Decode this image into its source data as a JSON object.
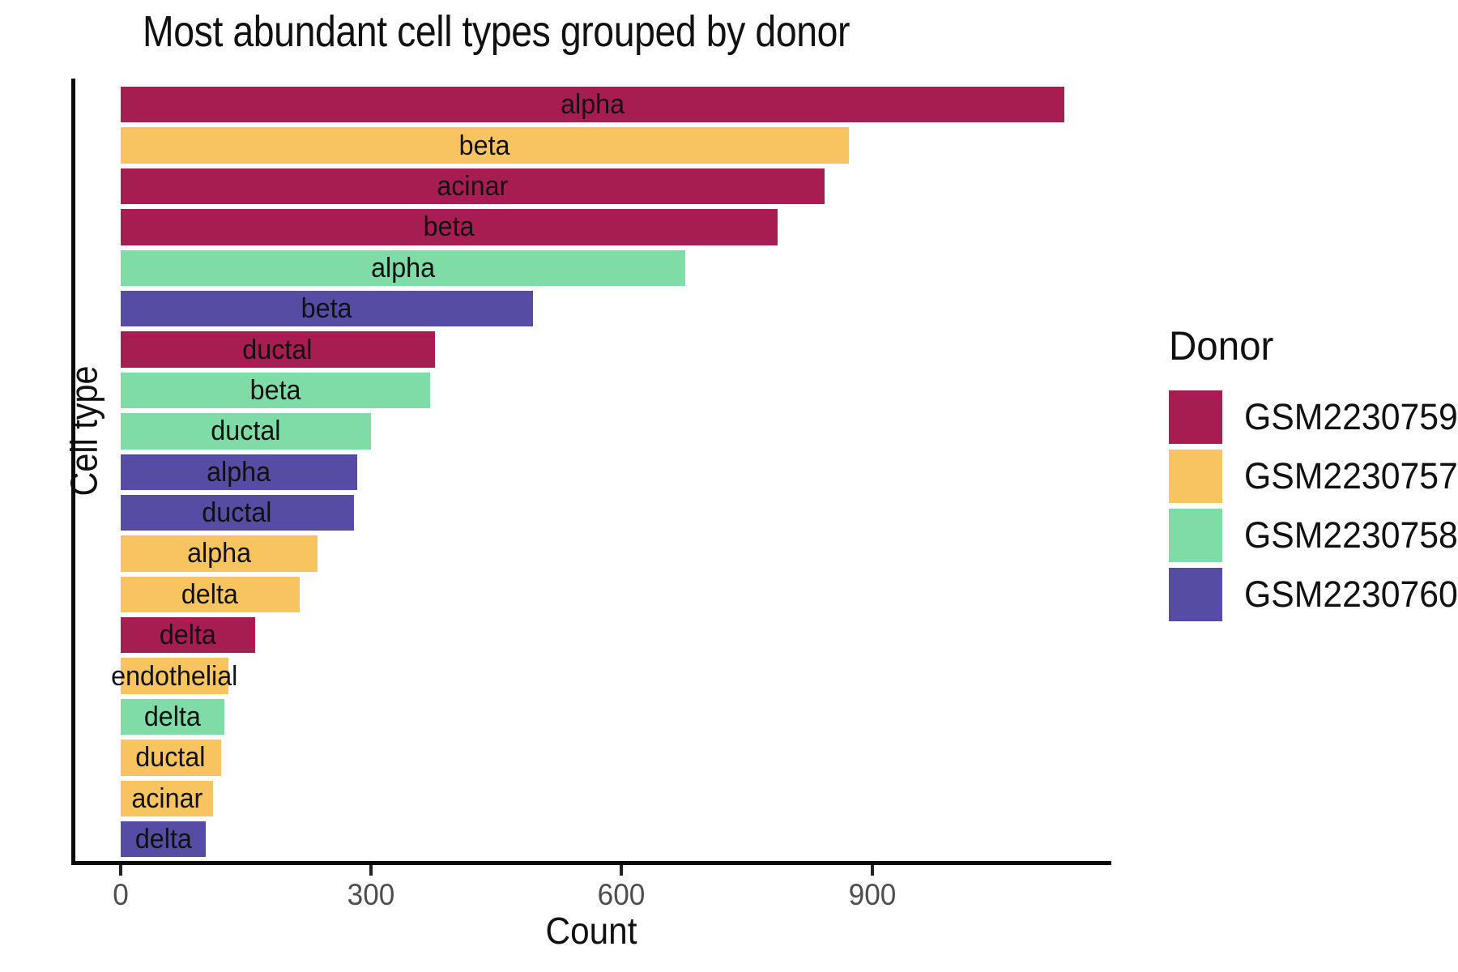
{
  "chart_data": {
    "type": "bar",
    "orientation": "horizontal",
    "title": "Most abundant cell types grouped by donor",
    "xlabel": "Count",
    "ylabel": "Cell type",
    "x_ticks": [
      0,
      300,
      600,
      900
    ],
    "xlim": [
      0,
      1186
    ],
    "grid": false,
    "legend": {
      "title": "Donor",
      "position": "right",
      "entries": [
        {
          "label": "GSM2230759",
          "color": "#A81D51"
        },
        {
          "label": "GSM2230757",
          "color": "#F7C45F"
        },
        {
          "label": "GSM2230758",
          "color": "#7FDCA7"
        },
        {
          "label": "GSM2230760",
          "color": "#574CA3"
        }
      ]
    },
    "donor_colors": {
      "GSM2230759": "#A81D51",
      "GSM2230757": "#F7C45F",
      "GSM2230758": "#7FDCA7",
      "GSM2230760": "#574CA3"
    },
    "bars": [
      {
        "cell_type": "alpha",
        "donor": "GSM2230759",
        "value": 1130
      },
      {
        "cell_type": "beta",
        "donor": "GSM2230757",
        "value": 872
      },
      {
        "cell_type": "acinar",
        "donor": "GSM2230759",
        "value": 843
      },
      {
        "cell_type": "beta",
        "donor": "GSM2230759",
        "value": 787
      },
      {
        "cell_type": "alpha",
        "donor": "GSM2230758",
        "value": 676
      },
      {
        "cell_type": "beta",
        "donor": "GSM2230760",
        "value": 494
      },
      {
        "cell_type": "ductal",
        "donor": "GSM2230759",
        "value": 376
      },
      {
        "cell_type": "beta",
        "donor": "GSM2230758",
        "value": 371
      },
      {
        "cell_type": "ductal",
        "donor": "GSM2230758",
        "value": 300
      },
      {
        "cell_type": "alpha",
        "donor": "GSM2230760",
        "value": 283
      },
      {
        "cell_type": "ductal",
        "donor": "GSM2230760",
        "value": 279
      },
      {
        "cell_type": "alpha",
        "donor": "GSM2230757",
        "value": 236
      },
      {
        "cell_type": "delta",
        "donor": "GSM2230757",
        "value": 214
      },
      {
        "cell_type": "delta",
        "donor": "GSM2230759",
        "value": 161
      },
      {
        "cell_type": "endothelial",
        "donor": "GSM2230757",
        "value": 129
      },
      {
        "cell_type": "delta",
        "donor": "GSM2230758",
        "value": 124
      },
      {
        "cell_type": "ductal",
        "donor": "GSM2230757",
        "value": 120
      },
      {
        "cell_type": "acinar",
        "donor": "GSM2230757",
        "value": 111
      },
      {
        "cell_type": "delta",
        "donor": "GSM2230760",
        "value": 102
      }
    ]
  }
}
